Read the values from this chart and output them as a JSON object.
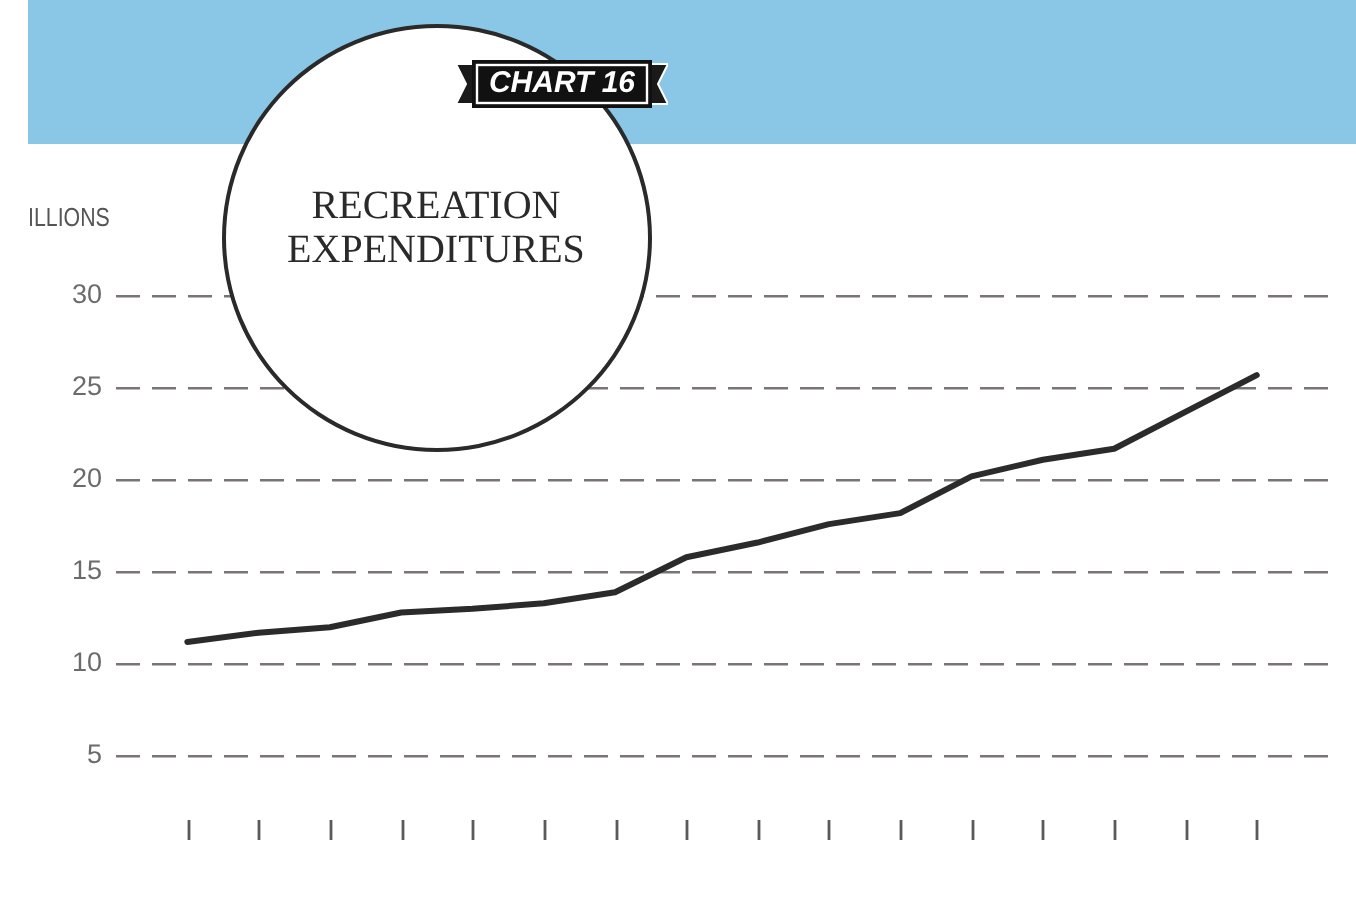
{
  "chart_data": {
    "type": "line",
    "title": "RECREATION EXPENDITURES",
    "ylabel": "ILLIONS",
    "annotations": [
      "CHART 16"
    ],
    "categories": [
      null,
      null,
      null,
      null,
      null,
      null,
      null,
      null,
      null,
      null,
      null,
      null,
      null,
      null,
      null,
      null
    ],
    "series": [
      {
        "color": "#2b2b2b",
        "values": [
          11.2,
          11.7,
          12.0,
          12.8,
          13.0,
          13.3,
          13.9,
          15.8,
          16.6,
          17.6,
          18.2,
          20.2,
          21.1,
          21.7,
          23.7,
          25.7
        ]
      }
    ],
    "ylim": [
      5,
      30
    ],
    "yticks": [
      5,
      10,
      15,
      20,
      25,
      30
    ],
    "grid": "y",
    "tick_labels": "y",
    "marker": "none",
    "line_style": "solid"
  }
}
